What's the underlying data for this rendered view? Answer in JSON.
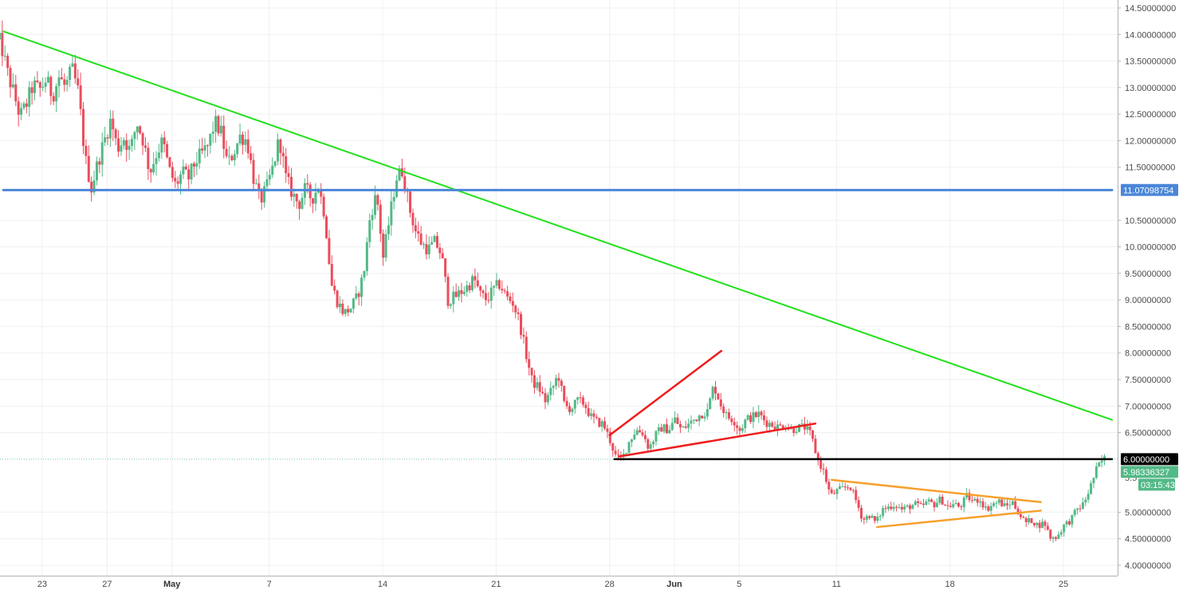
{
  "chart_data": {
    "type": "candlestick",
    "y_axis": {
      "ticks": [
        "14.50000000",
        "14.00000000",
        "13.50000000",
        "13.00000000",
        "12.50000000",
        "12.00000000",
        "11.50000000",
        "10.50000000",
        "10.00000000",
        "9.50000000",
        "9.00000000",
        "8.50000000",
        "8.00000000",
        "7.50000000",
        "7.00000000",
        "6.50000000",
        "5.00000000",
        "4.50000000",
        "4.00000000"
      ],
      "tick_values": [
        14.5,
        14.0,
        13.5,
        13.0,
        12.5,
        12.0,
        11.5,
        10.5,
        10.0,
        9.5,
        9.0,
        8.5,
        8.0,
        7.5,
        7.0,
        6.5,
        5.0,
        4.5,
        4.0
      ],
      "range": [
        3.92,
        14.58
      ],
      "position": "right"
    },
    "x_axis": {
      "ticks": [
        {
          "label": "23",
          "day": 23,
          "bold": false
        },
        {
          "label": "27",
          "day": 27,
          "bold": false
        },
        {
          "label": "May",
          "day": 31,
          "bold": true
        },
        {
          "label": "7",
          "day": 37,
          "bold": false
        },
        {
          "label": "14",
          "day": 44,
          "bold": false
        },
        {
          "label": "21",
          "day": 51,
          "bold": false
        },
        {
          "label": "28",
          "day": 58,
          "bold": false
        },
        {
          "label": "Jun",
          "day": 62,
          "bold": true
        },
        {
          "label": "5",
          "day": 66,
          "bold": false
        },
        {
          "label": "11",
          "day": 72,
          "bold": false
        },
        {
          "label": "18",
          "day": 79,
          "bold": false
        },
        {
          "label": "25",
          "day": 86,
          "bold": false
        }
      ],
      "range": [
        20.4,
        89.0
      ],
      "unit": "day (April 1 = day 1)"
    },
    "colors": {
      "up": "#53b987",
      "down": "#eb4d5c",
      "grid": "#eef0f3",
      "trend_green": "#22e01a",
      "trend_blue": "#4a86d8",
      "trend_red": "#f01c1c",
      "trend_orange": "#f7a02c",
      "trend_black": "#000000"
    },
    "price_path": [
      [
        20.6,
        13.85
      ],
      [
        21.0,
        13.3
      ],
      [
        21.4,
        12.9
      ],
      [
        21.8,
        12.45
      ],
      [
        22.2,
        12.7
      ],
      [
        22.6,
        13.05
      ],
      [
        23.0,
        12.95
      ],
      [
        23.4,
        13.15
      ],
      [
        23.8,
        12.85
      ],
      [
        24.2,
        13.2
      ],
      [
        24.6,
        13.0
      ],
      [
        25.0,
        13.35
      ],
      [
        25.4,
        12.9
      ],
      [
        25.8,
        11.7
      ],
      [
        26.2,
        11.1
      ],
      [
        26.6,
        11.6
      ],
      [
        27.0,
        12.0
      ],
      [
        27.4,
        12.4
      ],
      [
        27.8,
        11.85
      ],
      [
        28.2,
        12.05
      ],
      [
        28.6,
        11.8
      ],
      [
        29.0,
        12.35
      ],
      [
        29.4,
        12.0
      ],
      [
        29.8,
        11.4
      ],
      [
        30.2,
        11.75
      ],
      [
        30.6,
        12.0
      ],
      [
        31.0,
        11.45
      ],
      [
        31.4,
        11.15
      ],
      [
        31.8,
        11.4
      ],
      [
        32.2,
        11.3
      ],
      [
        32.6,
        11.6
      ],
      [
        33.0,
        11.75
      ],
      [
        33.4,
        11.9
      ],
      [
        33.8,
        12.35
      ],
      [
        34.2,
        12.15
      ],
      [
        34.6,
        11.55
      ],
      [
        35.0,
        11.8
      ],
      [
        35.4,
        12.1
      ],
      [
        35.8,
        12.0
      ],
      [
        36.2,
        11.3
      ],
      [
        36.6,
        10.85
      ],
      [
        37.0,
        11.1
      ],
      [
        37.4,
        11.5
      ],
      [
        37.8,
        12.05
      ],
      [
        38.2,
        11.3
      ],
      [
        38.6,
        11.0
      ],
      [
        39.0,
        10.8
      ],
      [
        39.4,
        11.1
      ],
      [
        39.8,
        10.9
      ],
      [
        40.2,
        11.15
      ],
      [
        40.6,
        10.6
      ],
      [
        41.0,
        9.3
      ],
      [
        41.4,
        8.95
      ],
      [
        41.8,
        8.75
      ],
      [
        42.2,
        8.85
      ],
      [
        42.6,
        9.05
      ],
      [
        43.0,
        9.5
      ],
      [
        43.4,
        10.6
      ],
      [
        43.8,
        11.0
      ],
      [
        44.2,
        9.8
      ],
      [
        44.6,
        10.55
      ],
      [
        45.0,
        11.3
      ],
      [
        45.4,
        11.45
      ],
      [
        45.8,
        10.75
      ],
      [
        46.2,
        10.3
      ],
      [
        46.6,
        10.05
      ],
      [
        47.0,
        9.95
      ],
      [
        47.4,
        10.1
      ],
      [
        47.8,
        9.85
      ],
      [
        48.2,
        9.0
      ],
      [
        48.6,
        9.05
      ],
      [
        49.0,
        9.15
      ],
      [
        49.4,
        9.25
      ],
      [
        49.8,
        9.4
      ],
      [
        50.2,
        9.1
      ],
      [
        50.6,
        9.0
      ],
      [
        51.0,
        9.2
      ],
      [
        51.4,
        9.3
      ],
      [
        51.8,
        9.05
      ],
      [
        52.2,
        8.95
      ],
      [
        52.6,
        8.6
      ],
      [
        53.0,
        8.0
      ],
      [
        53.4,
        7.45
      ],
      [
        53.8,
        7.35
      ],
      [
        54.2,
        7.1
      ],
      [
        54.6,
        7.3
      ],
      [
        55.0,
        7.6
      ],
      [
        55.4,
        7.0
      ],
      [
        55.8,
        6.95
      ],
      [
        56.2,
        7.1
      ],
      [
        56.6,
        7.05
      ],
      [
        57.0,
        6.8
      ],
      [
        57.4,
        6.7
      ],
      [
        57.8,
        6.65
      ],
      [
        58.2,
        6.35
      ],
      [
        58.6,
        6.0
      ],
      [
        59.0,
        6.05
      ],
      [
        59.4,
        6.35
      ],
      [
        59.8,
        6.55
      ],
      [
        60.2,
        6.5
      ],
      [
        60.6,
        6.2
      ],
      [
        61.0,
        6.45
      ],
      [
        61.4,
        6.6
      ],
      [
        61.8,
        6.55
      ],
      [
        62.2,
        6.75
      ],
      [
        62.6,
        6.55
      ],
      [
        63.0,
        6.65
      ],
      [
        63.4,
        6.75
      ],
      [
        63.8,
        6.85
      ],
      [
        64.2,
        6.9
      ],
      [
        64.6,
        7.4
      ],
      [
        65.0,
        7.05
      ],
      [
        65.4,
        6.8
      ],
      [
        65.8,
        6.75
      ],
      [
        66.2,
        6.55
      ],
      [
        66.6,
        6.75
      ],
      [
        67.0,
        6.8
      ],
      [
        67.4,
        6.85
      ],
      [
        67.8,
        6.7
      ],
      [
        68.2,
        6.65
      ],
      [
        68.6,
        6.6
      ],
      [
        69.0,
        6.65
      ],
      [
        69.4,
        6.55
      ],
      [
        69.8,
        6.6
      ],
      [
        70.2,
        6.6
      ],
      [
        70.6,
        6.45
      ],
      [
        71.0,
        6.0
      ],
      [
        71.4,
        5.75
      ],
      [
        71.8,
        5.3
      ],
      [
        72.2,
        5.4
      ],
      [
        72.6,
        5.45
      ],
      [
        73.0,
        5.5
      ],
      [
        73.4,
        5.2
      ],
      [
        73.8,
        4.85
      ],
      [
        74.2,
        4.95
      ],
      [
        74.6,
        4.8
      ],
      [
        75.0,
        5.05
      ],
      [
        75.4,
        5.1
      ],
      [
        75.8,
        5.15
      ],
      [
        76.2,
        5.05
      ],
      [
        76.6,
        5.1
      ],
      [
        77.0,
        5.15
      ],
      [
        77.4,
        5.1
      ],
      [
        77.8,
        5.2
      ],
      [
        78.2,
        5.15
      ],
      [
        78.6,
        5.25
      ],
      [
        79.0,
        5.1
      ],
      [
        79.4,
        5.15
      ],
      [
        79.8,
        5.1
      ],
      [
        80.2,
        5.3
      ],
      [
        80.6,
        5.2
      ],
      [
        81.0,
        5.25
      ],
      [
        81.4,
        5.05
      ],
      [
        81.8,
        5.15
      ],
      [
        82.2,
        5.2
      ],
      [
        82.6,
        5.1
      ],
      [
        83.0,
        5.2
      ],
      [
        83.4,
        5.0
      ],
      [
        83.8,
        4.8
      ],
      [
        84.2,
        4.85
      ],
      [
        84.6,
        4.75
      ],
      [
        85.0,
        4.8
      ],
      [
        85.4,
        4.5
      ],
      [
        85.8,
        4.55
      ],
      [
        86.2,
        4.75
      ],
      [
        86.6,
        4.85
      ],
      [
        87.0,
        5.05
      ],
      [
        87.4,
        5.15
      ],
      [
        87.8,
        5.45
      ],
      [
        88.2,
        5.8
      ],
      [
        88.6,
        6.0
      ]
    ],
    "trend_lines": [
      {
        "name": "green",
        "points": [
          [
            20.6,
            14.06
          ],
          [
            89.0,
            6.74
          ]
        ]
      },
      {
        "name": "blue",
        "points": [
          [
            20.6,
            11.07
          ],
          [
            89.0,
            11.07
          ]
        ]
      },
      {
        "name": "red-upper",
        "points": [
          [
            58.0,
            6.45
          ],
          [
            64.9,
            8.04
          ]
        ]
      },
      {
        "name": "red-lower",
        "points": [
          [
            58.6,
            6.05
          ],
          [
            70.7,
            6.67
          ]
        ]
      },
      {
        "name": "orange-upper",
        "points": [
          [
            71.7,
            5.61
          ],
          [
            84.6,
            5.19
          ]
        ]
      },
      {
        "name": "orange-lower",
        "points": [
          [
            74.5,
            4.72
          ],
          [
            84.6,
            5.03
          ]
        ]
      },
      {
        "name": "black",
        "points": [
          [
            58.3,
            6.0
          ],
          [
            89.0,
            6.0
          ]
        ]
      }
    ],
    "price_tags": [
      {
        "label": "11.07098754",
        "value": 11.07098754,
        "color": "#4a86d8"
      },
      {
        "label": "6.00000000",
        "value": 6.0,
        "color": "#000000"
      },
      {
        "label": "5.98336327",
        "value": 5.98336327,
        "color": "#53b987"
      },
      {
        "label": "03:15:43",
        "value": 5.65,
        "color": "#53b987"
      }
    ],
    "partial_tick": {
      "label": "5.5",
      "value": 5.65
    },
    "current_price_line": 6.0
  }
}
